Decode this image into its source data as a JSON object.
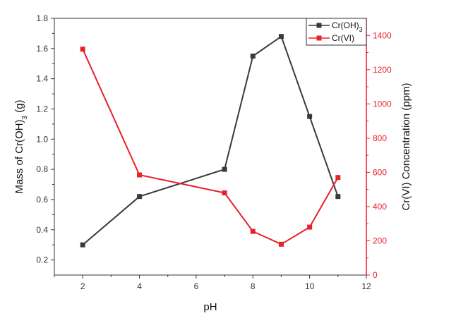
{
  "chart_data": {
    "type": "line",
    "xlabel": "pH",
    "ylabel_left": "Mass of Cr(OH)3 (g)",
    "ylabel_left_parts": {
      "prefix": "Mass of Cr(OH)",
      "subscript": "3",
      "suffix": " (g)"
    },
    "ylabel_right": "Cr(VI) Concentration (ppm)",
    "xlim": [
      1,
      12
    ],
    "ylim_left": [
      0.1,
      1.8
    ],
    "ylim_right": [
      0,
      1500
    ],
    "x_ticks": [
      2,
      4,
      6,
      8,
      10,
      12
    ],
    "y_left_ticks": [
      0.2,
      0.4,
      0.6,
      0.8,
      1.0,
      1.2,
      1.4,
      1.6,
      1.8
    ],
    "y_right_ticks": [
      0,
      200,
      400,
      600,
      800,
      1000,
      1200,
      1400
    ],
    "grid": false,
    "legend_position": "top-right",
    "series": [
      {
        "name": "Cr(OH)3",
        "name_parts": {
          "prefix": "Cr(OH)",
          "subscript": "3"
        },
        "axis": "left",
        "color": "#3a3a3a",
        "marker": "square",
        "x": [
          2,
          4,
          7,
          8,
          9,
          10,
          11
        ],
        "y": [
          0.3,
          0.62,
          0.8,
          1.55,
          1.68,
          1.15,
          0.62
        ]
      },
      {
        "name": "Cr(VI)",
        "axis": "right",
        "color": "#e8202a",
        "marker": "square",
        "x": [
          2,
          4,
          7,
          8,
          9,
          10,
          11
        ],
        "y": [
          1320,
          585,
          480,
          255,
          180,
          280,
          570
        ]
      }
    ]
  }
}
